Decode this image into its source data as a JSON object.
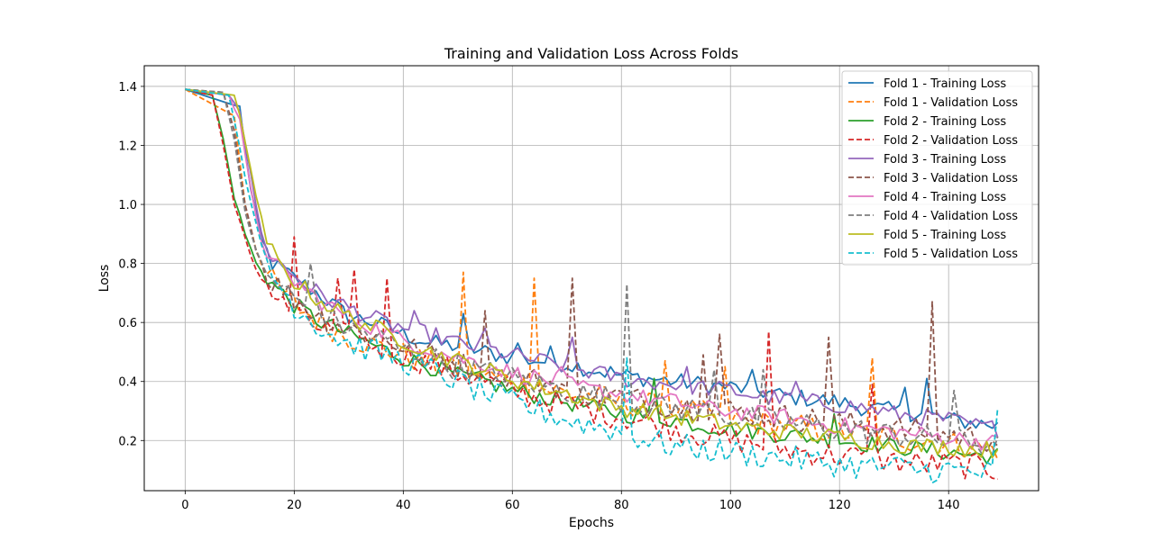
{
  "chart_data": {
    "type": "line",
    "title": "Training and Validation Loss Across Folds",
    "xlabel": "Epochs",
    "ylabel": "Loss",
    "xlim": [
      -7.5,
      156.5
    ],
    "ylim": [
      0.03,
      1.47
    ],
    "xticks": [
      0,
      20,
      40,
      60,
      80,
      100,
      120,
      140
    ],
    "yticks": [
      0.2,
      0.4,
      0.6,
      0.8,
      1.0,
      1.2,
      1.4
    ],
    "ytick_labels": [
      "0.2",
      "0.4",
      "0.6",
      "0.8",
      "1.0",
      "1.2",
      "1.4"
    ],
    "grid": true,
    "legend_position": "upper-right",
    "epochs": 150,
    "series": [
      {
        "name": "Fold 1 - Training Loss",
        "color": "#1f77b4",
        "style": "solid",
        "x": [
          0,
          10,
          12,
          14,
          16,
          20,
          25,
          30,
          35,
          40,
          45,
          50,
          55,
          60,
          65,
          70,
          75,
          80,
          85,
          90,
          95,
          100,
          105,
          110,
          115,
          120,
          125,
          130,
          135,
          140,
          145,
          149
        ],
        "y": [
          1.39,
          1.33,
          1.05,
          0.88,
          0.8,
          0.75,
          0.69,
          0.62,
          0.6,
          0.56,
          0.53,
          0.52,
          0.5,
          0.48,
          0.47,
          0.46,
          0.44,
          0.42,
          0.41,
          0.4,
          0.39,
          0.38,
          0.37,
          0.35,
          0.34,
          0.33,
          0.31,
          0.3,
          0.29,
          0.27,
          0.26,
          0.25
        ],
        "spikes": [
          [
            51,
            0.63
          ],
          [
            61,
            0.53
          ],
          [
            67,
            0.52
          ],
          [
            78,
            0.45
          ],
          [
            104,
            0.44
          ],
          [
            132,
            0.38
          ],
          [
            136,
            0.41
          ]
        ]
      },
      {
        "name": "Fold 1 - Validation Loss",
        "color": "#ff7f0e",
        "style": "dashed",
        "x": [
          0,
          9,
          11,
          13,
          15,
          20,
          25,
          30,
          35,
          40,
          45,
          50,
          55,
          60,
          65,
          70,
          75,
          80,
          85,
          90,
          95,
          100,
          105,
          110,
          115,
          120,
          125,
          130,
          135,
          140,
          145,
          149
        ],
        "y": [
          1.39,
          1.3,
          1.0,
          0.85,
          0.76,
          0.66,
          0.6,
          0.55,
          0.52,
          0.49,
          0.46,
          0.44,
          0.42,
          0.4,
          0.38,
          0.36,
          0.35,
          0.33,
          0.32,
          0.3,
          0.29,
          0.27,
          0.26,
          0.25,
          0.24,
          0.23,
          0.22,
          0.21,
          0.2,
          0.19,
          0.18,
          0.17
        ],
        "spikes": [
          [
            51,
            0.77
          ],
          [
            64,
            0.75
          ],
          [
            88,
            0.47
          ],
          [
            99,
            0.45
          ],
          [
            126,
            0.48
          ]
        ]
      },
      {
        "name": "Fold 2 - Training Loss",
        "color": "#2ca02c",
        "style": "solid",
        "x": [
          0,
          5,
          7,
          9,
          11,
          13,
          16,
          20,
          25,
          30,
          35,
          40,
          45,
          50,
          55,
          60,
          65,
          70,
          75,
          80,
          85,
          90,
          95,
          100,
          105,
          110,
          115,
          120,
          125,
          130,
          135,
          140,
          145,
          149
        ],
        "y": [
          1.39,
          1.37,
          1.22,
          1.02,
          0.9,
          0.8,
          0.73,
          0.66,
          0.6,
          0.56,
          0.52,
          0.48,
          0.45,
          0.42,
          0.4,
          0.37,
          0.35,
          0.33,
          0.31,
          0.29,
          0.28,
          0.27,
          0.25,
          0.24,
          0.23,
          0.22,
          0.21,
          0.2,
          0.19,
          0.18,
          0.17,
          0.16,
          0.15,
          0.15
        ],
        "spikes": [
          [
            86,
            0.41
          ],
          [
            119,
            0.29
          ]
        ]
      },
      {
        "name": "Fold 2 - Validation Loss",
        "color": "#d62728",
        "style": "dashed",
        "x": [
          0,
          5,
          7,
          9,
          11,
          13,
          16,
          20,
          25,
          30,
          35,
          40,
          45,
          50,
          55,
          60,
          65,
          70,
          75,
          80,
          85,
          90,
          95,
          100,
          105,
          110,
          115,
          120,
          125,
          130,
          135,
          140,
          145,
          149
        ],
        "y": [
          1.39,
          1.37,
          1.2,
          1.0,
          0.88,
          0.78,
          0.7,
          0.62,
          0.58,
          0.55,
          0.52,
          0.49,
          0.46,
          0.43,
          0.4,
          0.37,
          0.34,
          0.32,
          0.3,
          0.28,
          0.26,
          0.24,
          0.22,
          0.2,
          0.19,
          0.17,
          0.16,
          0.15,
          0.14,
          0.13,
          0.12,
          0.12,
          0.11,
          0.1
        ],
        "spikes": [
          [
            20,
            0.89
          ],
          [
            28,
            0.75
          ],
          [
            31,
            0.78
          ],
          [
            37,
            0.75
          ],
          [
            107,
            0.57
          ],
          [
            126,
            0.39
          ]
        ]
      },
      {
        "name": "Fold 3 - Training Loss",
        "color": "#9467bd",
        "style": "solid",
        "x": [
          0,
          8,
          10,
          12,
          14,
          16,
          20,
          25,
          30,
          35,
          40,
          45,
          50,
          55,
          60,
          65,
          70,
          75,
          80,
          85,
          90,
          95,
          100,
          105,
          110,
          115,
          120,
          125,
          130,
          135,
          140,
          145,
          149
        ],
        "y": [
          1.39,
          1.37,
          1.32,
          1.1,
          0.9,
          0.82,
          0.76,
          0.69,
          0.65,
          0.61,
          0.58,
          0.56,
          0.53,
          0.51,
          0.49,
          0.47,
          0.45,
          0.43,
          0.41,
          0.4,
          0.39,
          0.38,
          0.37,
          0.35,
          0.34,
          0.33,
          0.32,
          0.31,
          0.29,
          0.28,
          0.27,
          0.25,
          0.24
        ],
        "spikes": [
          [
            42,
            0.64
          ],
          [
            55,
            0.58
          ],
          [
            71,
            0.55
          ],
          [
            92,
            0.45
          ],
          [
            112,
            0.4
          ]
        ]
      },
      {
        "name": "Fold 3 - Validation Loss",
        "color": "#8c564b",
        "style": "dashed",
        "x": [
          0,
          7,
          9,
          11,
          13,
          15,
          20,
          25,
          30,
          35,
          40,
          45,
          50,
          55,
          60,
          65,
          70,
          75,
          80,
          85,
          90,
          95,
          100,
          105,
          110,
          115,
          120,
          125,
          130,
          135,
          140,
          145,
          149
        ],
        "y": [
          1.39,
          1.38,
          1.25,
          1.0,
          0.85,
          0.76,
          0.68,
          0.62,
          0.58,
          0.55,
          0.52,
          0.49,
          0.46,
          0.44,
          0.42,
          0.4,
          0.38,
          0.36,
          0.35,
          0.33,
          0.32,
          0.31,
          0.3,
          0.29,
          0.28,
          0.27,
          0.26,
          0.25,
          0.24,
          0.23,
          0.22,
          0.21,
          0.2
        ],
        "spikes": [
          [
            55,
            0.64
          ],
          [
            71,
            0.75
          ],
          [
            95,
            0.49
          ],
          [
            98,
            0.56
          ],
          [
            118,
            0.55
          ],
          [
            137,
            0.67
          ]
        ]
      },
      {
        "name": "Fold 4 - Training Loss",
        "color": "#e377c2",
        "style": "solid",
        "x": [
          0,
          8,
          10,
          12,
          14,
          16,
          20,
          25,
          30,
          35,
          40,
          45,
          50,
          55,
          60,
          65,
          70,
          75,
          80,
          85,
          90,
          95,
          100,
          105,
          110,
          115,
          120,
          125,
          130,
          135,
          140,
          145,
          149
        ],
        "y": [
          1.39,
          1.37,
          1.28,
          1.05,
          0.88,
          0.8,
          0.74,
          0.67,
          0.62,
          0.58,
          0.54,
          0.51,
          0.48,
          0.46,
          0.43,
          0.41,
          0.39,
          0.37,
          0.36,
          0.34,
          0.33,
          0.31,
          0.3,
          0.29,
          0.28,
          0.26,
          0.25,
          0.24,
          0.23,
          0.22,
          0.21,
          0.2,
          0.19
        ],
        "spikes": [
          [
            69,
            0.45
          ]
        ]
      },
      {
        "name": "Fold 4 - Validation Loss",
        "color": "#7f7f7f",
        "style": "dashed",
        "x": [
          0,
          7,
          9,
          11,
          13,
          15,
          20,
          25,
          30,
          35,
          40,
          45,
          50,
          55,
          60,
          65,
          70,
          75,
          80,
          85,
          90,
          95,
          100,
          105,
          110,
          115,
          120,
          125,
          130,
          135,
          140,
          145,
          149
        ],
        "y": [
          1.39,
          1.38,
          1.22,
          0.98,
          0.84,
          0.76,
          0.68,
          0.63,
          0.58,
          0.55,
          0.51,
          0.48,
          0.45,
          0.43,
          0.41,
          0.39,
          0.37,
          0.35,
          0.34,
          0.32,
          0.31,
          0.3,
          0.28,
          0.27,
          0.26,
          0.25,
          0.24,
          0.23,
          0.22,
          0.21,
          0.2,
          0.19,
          0.18
        ],
        "spikes": [
          [
            23,
            0.8
          ],
          [
            81,
            0.73
          ],
          [
            97,
            0.44
          ],
          [
            106,
            0.44
          ],
          [
            141,
            0.37
          ]
        ]
      },
      {
        "name": "Fold 5 - Training Loss",
        "color": "#bcbd22",
        "style": "solid",
        "x": [
          0,
          9,
          11,
          13,
          15,
          17,
          20,
          25,
          30,
          35,
          40,
          45,
          50,
          55,
          60,
          65,
          70,
          75,
          80,
          85,
          90,
          95,
          100,
          105,
          110,
          115,
          120,
          125,
          130,
          135,
          140,
          145,
          149
        ],
        "y": [
          1.39,
          1.37,
          1.22,
          1.02,
          0.88,
          0.8,
          0.74,
          0.67,
          0.62,
          0.58,
          0.54,
          0.5,
          0.47,
          0.44,
          0.41,
          0.38,
          0.36,
          0.33,
          0.31,
          0.3,
          0.28,
          0.27,
          0.25,
          0.24,
          0.23,
          0.22,
          0.21,
          0.2,
          0.19,
          0.18,
          0.18,
          0.17,
          0.17
        ],
        "spikes": []
      },
      {
        "name": "Fold 5 - Validation Loss",
        "color": "#17becf",
        "style": "dashed",
        "x": [
          0,
          8,
          10,
          12,
          14,
          16,
          20,
          25,
          30,
          35,
          40,
          45,
          50,
          55,
          60,
          65,
          70,
          75,
          80,
          85,
          90,
          95,
          100,
          105,
          110,
          115,
          120,
          125,
          130,
          135,
          140,
          145,
          149
        ],
        "y": [
          1.39,
          1.37,
          1.2,
          1.0,
          0.86,
          0.76,
          0.66,
          0.58,
          0.53,
          0.5,
          0.47,
          0.44,
          0.4,
          0.36,
          0.33,
          0.3,
          0.27,
          0.25,
          0.23,
          0.2,
          0.18,
          0.17,
          0.16,
          0.15,
          0.14,
          0.13,
          0.12,
          0.11,
          0.11,
          0.1,
          0.1,
          0.09,
          0.09
        ],
        "spikes": [
          [
            81,
            0.48
          ],
          [
            149,
            0.31
          ]
        ]
      }
    ]
  }
}
